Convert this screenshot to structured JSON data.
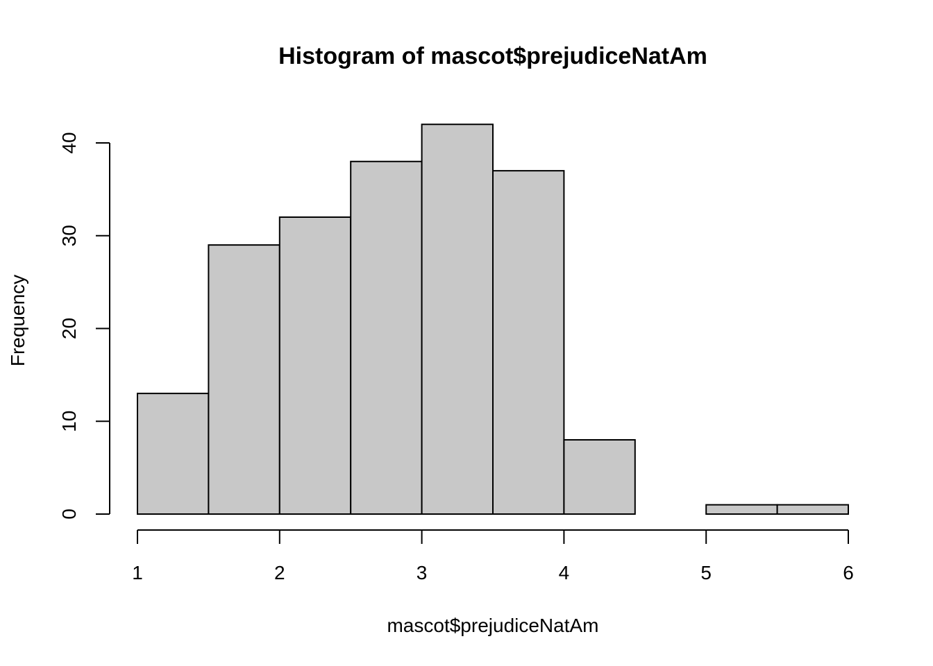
{
  "chart_data": {
    "type": "bar",
    "title": "Histogram of mascot$prejudiceNatAm",
    "xlabel": "mascot$prejudiceNatAm",
    "ylabel": "Frequency",
    "bins": [
      {
        "start": 1.0,
        "end": 1.5,
        "count": 13
      },
      {
        "start": 1.5,
        "end": 2.0,
        "count": 29
      },
      {
        "start": 2.0,
        "end": 2.5,
        "count": 32
      },
      {
        "start": 2.5,
        "end": 3.0,
        "count": 38
      },
      {
        "start": 3.0,
        "end": 3.5,
        "count": 42
      },
      {
        "start": 3.5,
        "end": 4.0,
        "count": 37
      },
      {
        "start": 4.0,
        "end": 4.5,
        "count": 8
      },
      {
        "start": 4.5,
        "end": 5.0,
        "count": 0
      },
      {
        "start": 5.0,
        "end": 5.5,
        "count": 1
      },
      {
        "start": 5.5,
        "end": 6.0,
        "count": 1
      }
    ],
    "xlim": [
      1,
      6
    ],
    "ylim": [
      0,
      42
    ],
    "xticks": [
      "1",
      "2",
      "3",
      "4",
      "5",
      "6"
    ],
    "yticks": [
      "0",
      "10",
      "20",
      "30",
      "40"
    ],
    "bar_color": "#c8c8c8",
    "edge_color": "#000000",
    "grid": false,
    "legend": "none"
  }
}
